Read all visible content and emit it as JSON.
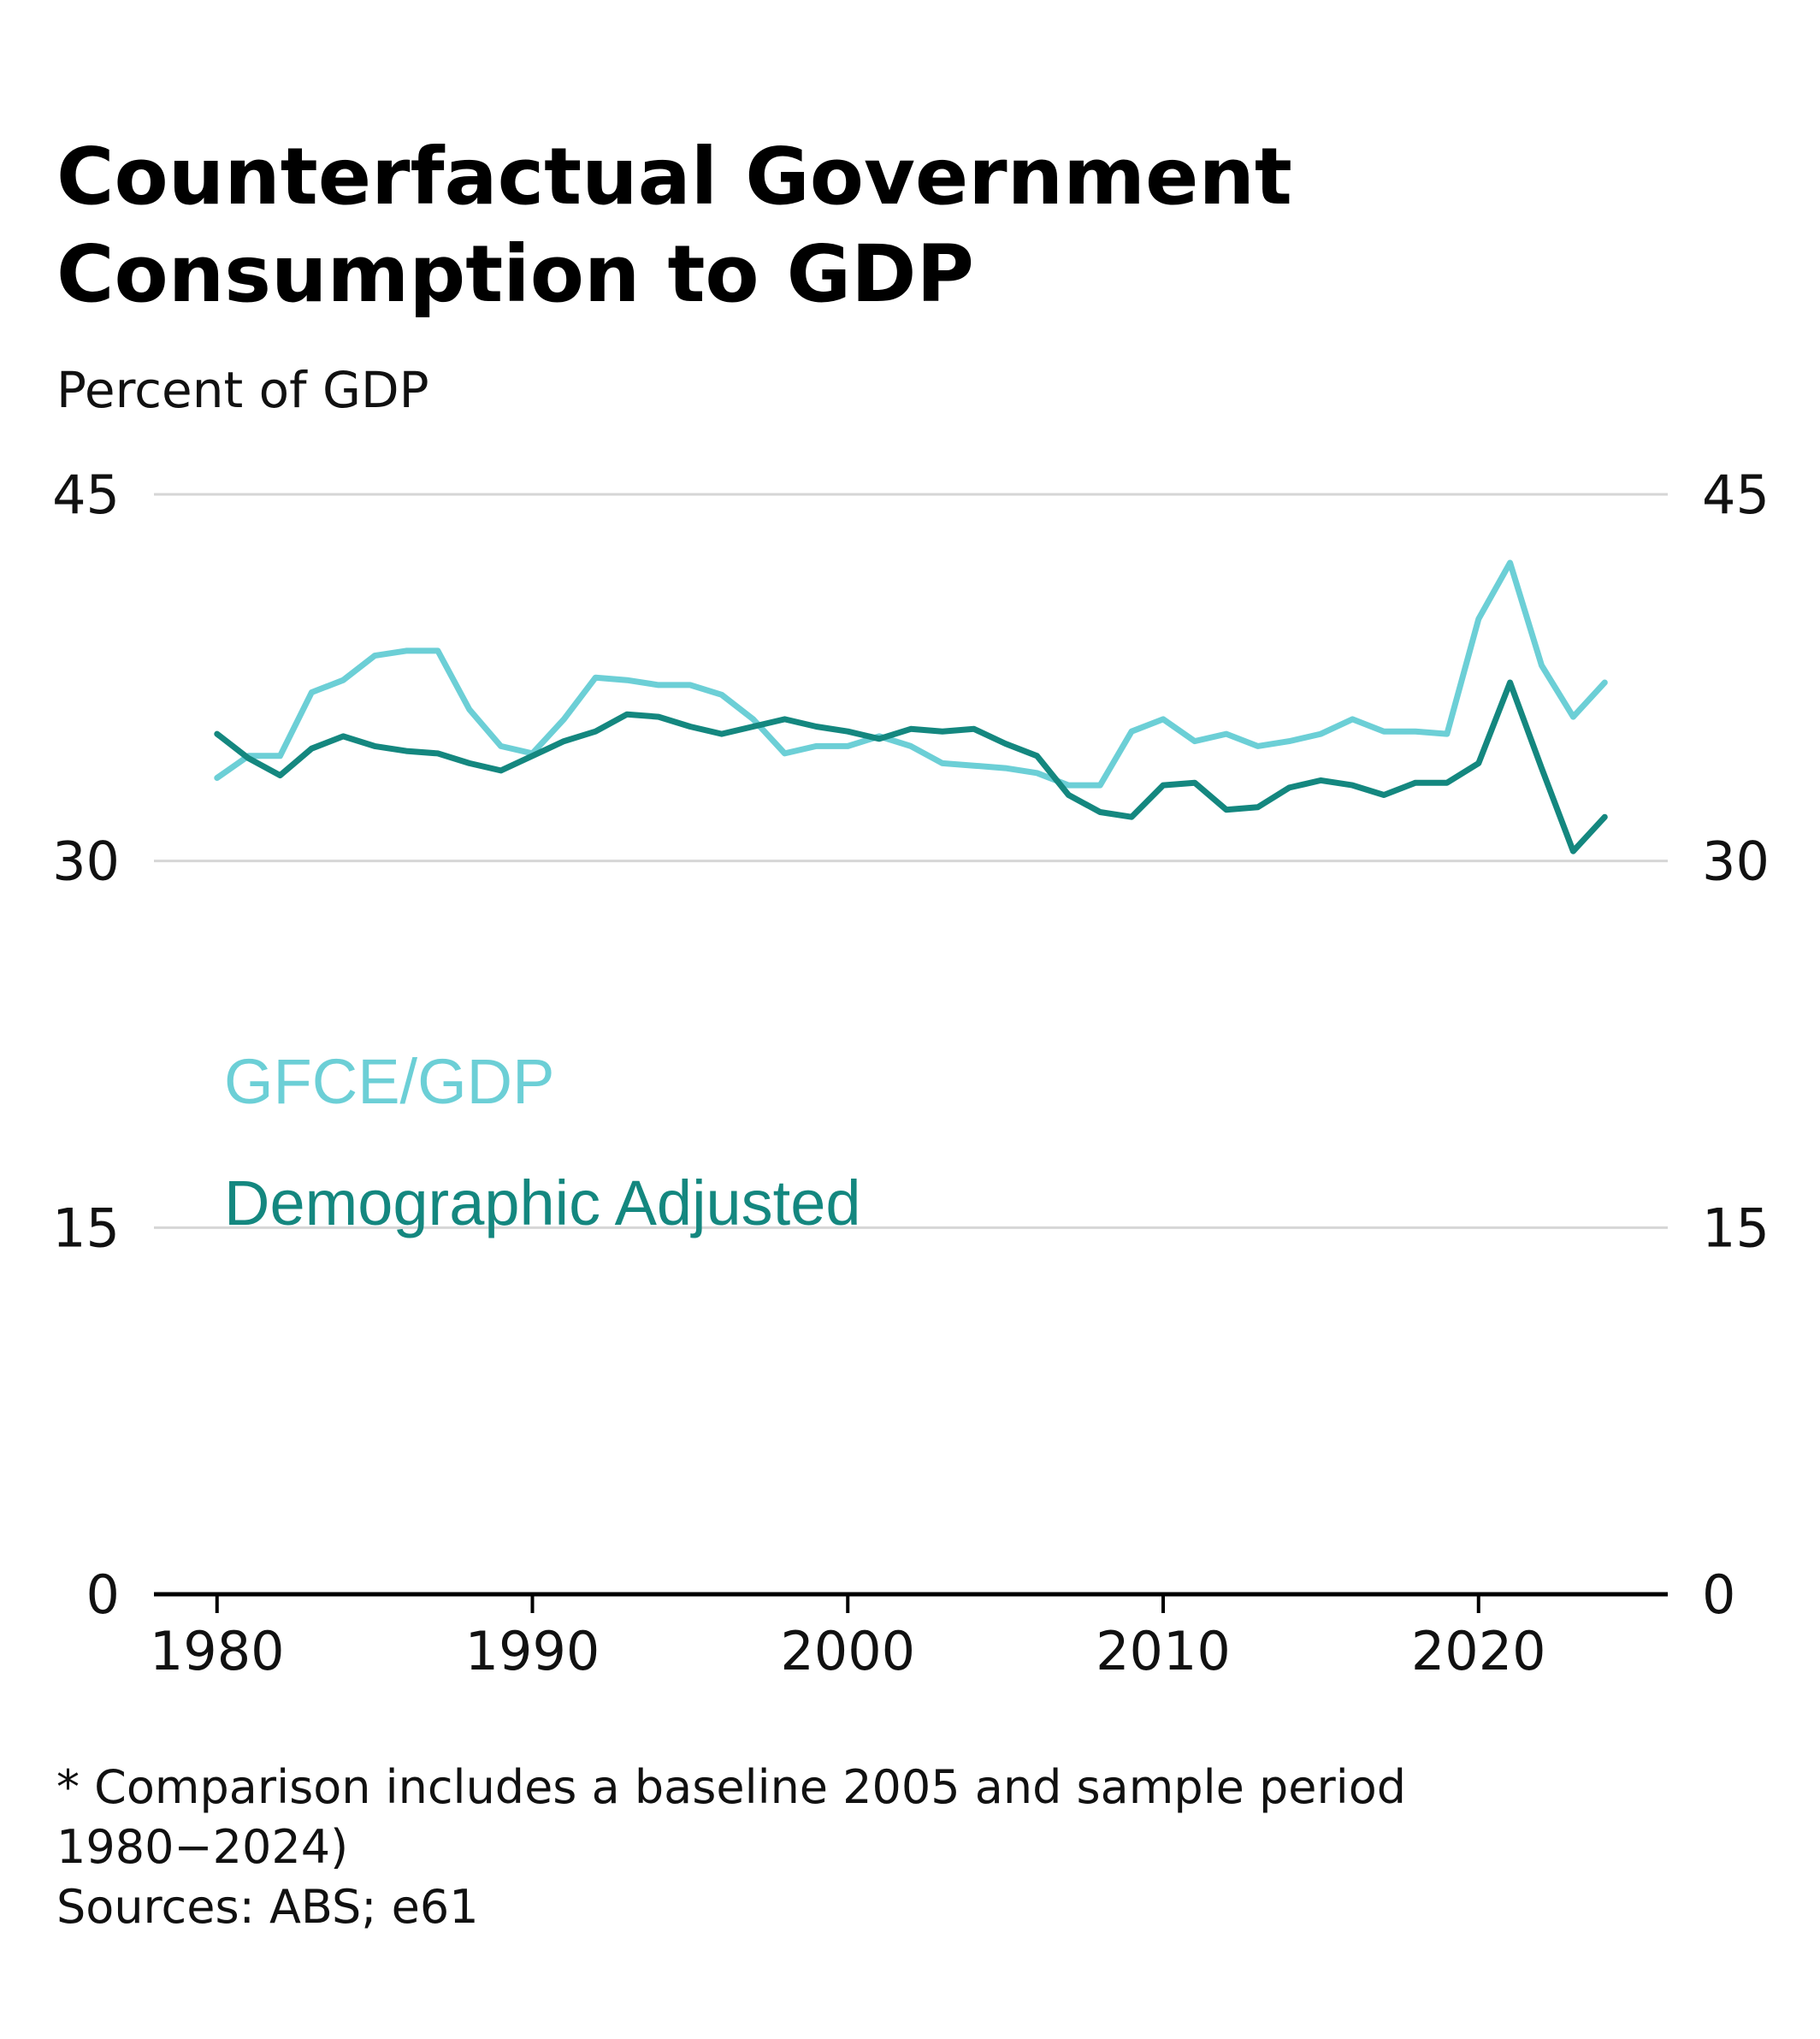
{
  "chart_data": {
    "type": "line",
    "title_lines": [
      "Counterfactual Government",
      "Consumption to GDP"
    ],
    "subtitle": "Percent of GDP",
    "xlim": [
      1978,
      2026
    ],
    "ylim": [
      0,
      45
    ],
    "x_ticks": [
      1980,
      1990,
      2000,
      2010,
      2020
    ],
    "y_ticks": [
      0,
      15,
      30,
      45
    ],
    "grid": true,
    "y_axis_both_sides": true,
    "legend_placement": "inside-left",
    "x": [
      1980,
      1981,
      1982,
      1983,
      1984,
      1985,
      1986,
      1987,
      1988,
      1989,
      1990,
      1991,
      1992,
      1993,
      1994,
      1995,
      1996,
      1997,
      1998,
      1999,
      2000,
      2001,
      2002,
      2003,
      2004,
      2005,
      2006,
      2007,
      2008,
      2009,
      2010,
      2011,
      2012,
      2013,
      2014,
      2015,
      2016,
      2017,
      2018,
      2019,
      2020,
      2021,
      2022,
      2023,
      2024
    ],
    "series": [
      {
        "name": "GFCE/GDP",
        "color": "#6ccfd6",
        "values": [
          33.4,
          34.3,
          34.3,
          36.9,
          37.4,
          38.4,
          38.6,
          38.6,
          36.2,
          34.7,
          34.4,
          35.8,
          37.5,
          37.4,
          37.2,
          37.2,
          36.8,
          35.8,
          34.4,
          34.7,
          34.7,
          35.1,
          34.7,
          34.0,
          33.9,
          33.8,
          33.6,
          33.1,
          33.1,
          35.3,
          35.8,
          34.9,
          35.2,
          34.7,
          34.9,
          35.2,
          35.8,
          35.3,
          35.3,
          35.2,
          39.9,
          42.2,
          38.0,
          35.9,
          37.3
        ]
      },
      {
        "name": "Demographic Adjusted",
        "color": "#14877f",
        "values": [
          35.2,
          34.2,
          33.5,
          34.6,
          35.1,
          34.7,
          34.5,
          34.4,
          34.0,
          33.7,
          34.3,
          34.9,
          35.3,
          36.0,
          35.9,
          35.5,
          35.2,
          35.5,
          35.8,
          35.5,
          35.3,
          35.0,
          35.4,
          35.3,
          35.4,
          34.8,
          34.3,
          32.7,
          32.0,
          31.8,
          33.1,
          33.2,
          32.1,
          32.2,
          33.0,
          33.3,
          33.1,
          32.7,
          33.2,
          33.2,
          34.0,
          37.3,
          33.8,
          30.4,
          31.8
        ]
      }
    ],
    "footnote_lines": [
      "* Comparison includes a baseline 2005 and sample period",
      "1980−2024)",
      "Sources: ABS; e61"
    ]
  }
}
